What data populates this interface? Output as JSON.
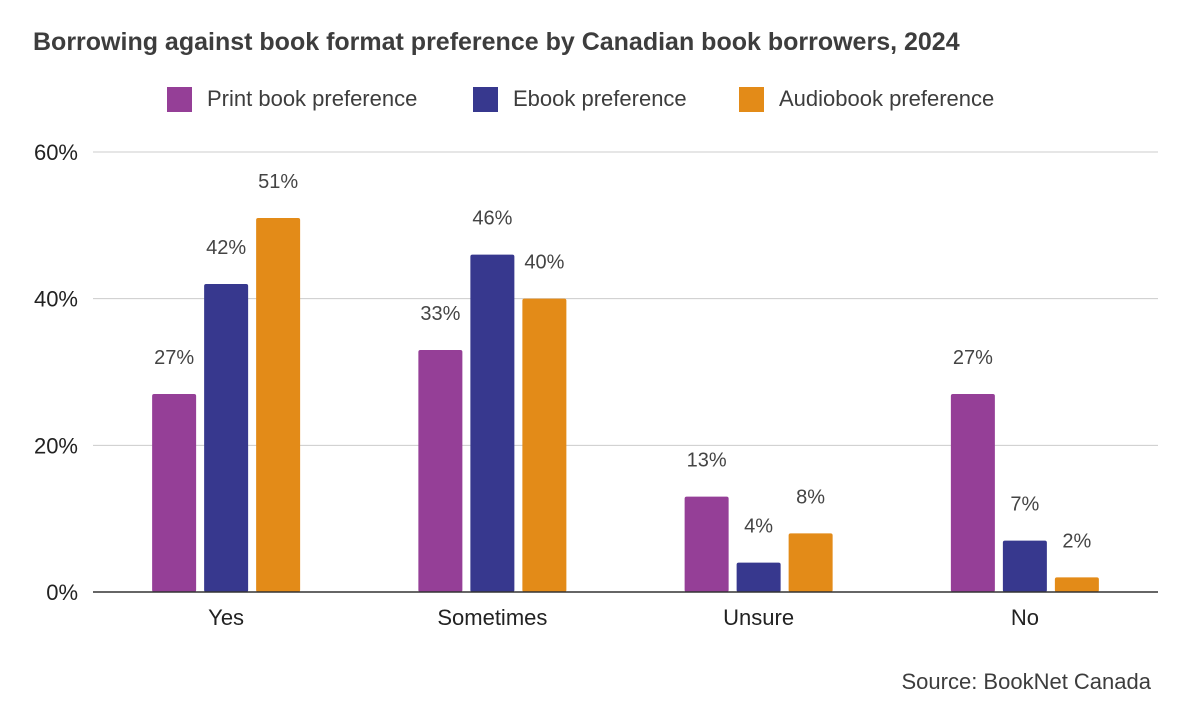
{
  "chart_data": {
    "type": "bar",
    "title": "Borrowing against book format preference by Canadian book borrowers, 2024",
    "categories": [
      "Yes",
      "Sometimes",
      "Unsure",
      "No"
    ],
    "series": [
      {
        "name": "Print book preference",
        "color": "#953f97",
        "values": [
          27,
          33,
          13,
          27
        ],
        "labels": [
          "27%",
          "33%",
          "13%",
          "27%"
        ]
      },
      {
        "name": "Ebook preference",
        "color": "#37388e",
        "values": [
          42,
          46,
          4,
          7
        ],
        "labels": [
          "42%",
          "46%",
          "4%",
          "7%"
        ]
      },
      {
        "name": "Audiobook preference",
        "color": "#e38b18",
        "values": [
          51,
          40,
          8,
          2
        ],
        "labels": [
          "51%",
          "40%",
          "8%",
          "2%"
        ]
      }
    ],
    "ylim": [
      0,
      60
    ],
    "yticks": [
      0,
      20,
      40,
      60
    ],
    "ytick_labels": [
      "0%",
      "20%",
      "40%",
      "60%"
    ],
    "xlabel": "",
    "ylabel": "",
    "grid": true,
    "legend_position": "top-center",
    "source": "Source: BookNet Canada"
  }
}
